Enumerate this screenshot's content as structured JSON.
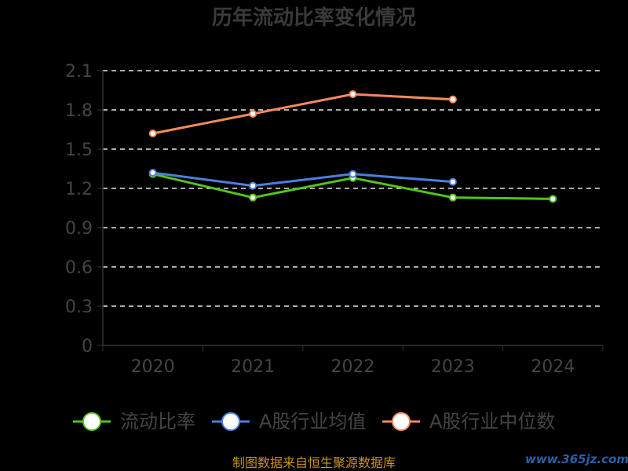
{
  "chart_data": {
    "type": "line",
    "title": "历年流动比率变化情况",
    "categories": [
      "2020",
      "2021",
      "2022",
      "2023",
      "2024"
    ],
    "y_ticks": [
      "0",
      "0.3",
      "0.6",
      "0.9",
      "1.2",
      "1.5",
      "1.8",
      "2.1"
    ],
    "ylim": [
      0,
      2.1
    ],
    "grid": true,
    "legend_position": "bottom",
    "series": [
      {
        "name": "流动比率",
        "color": "#52c41a",
        "values": [
          1.31,
          1.13,
          1.28,
          1.13,
          1.12
        ]
      },
      {
        "name": "A股行业均值",
        "color": "#4a7fe0",
        "values": [
          1.32,
          1.22,
          1.31,
          1.25,
          null
        ]
      },
      {
        "name": "A股行业中位数",
        "color": "#f28a5a",
        "values": [
          1.62,
          1.77,
          1.92,
          1.88,
          null
        ]
      }
    ]
  },
  "footer": {
    "source": "制图数据来自恒生聚源数据库",
    "watermark": "www.365jz.com"
  }
}
